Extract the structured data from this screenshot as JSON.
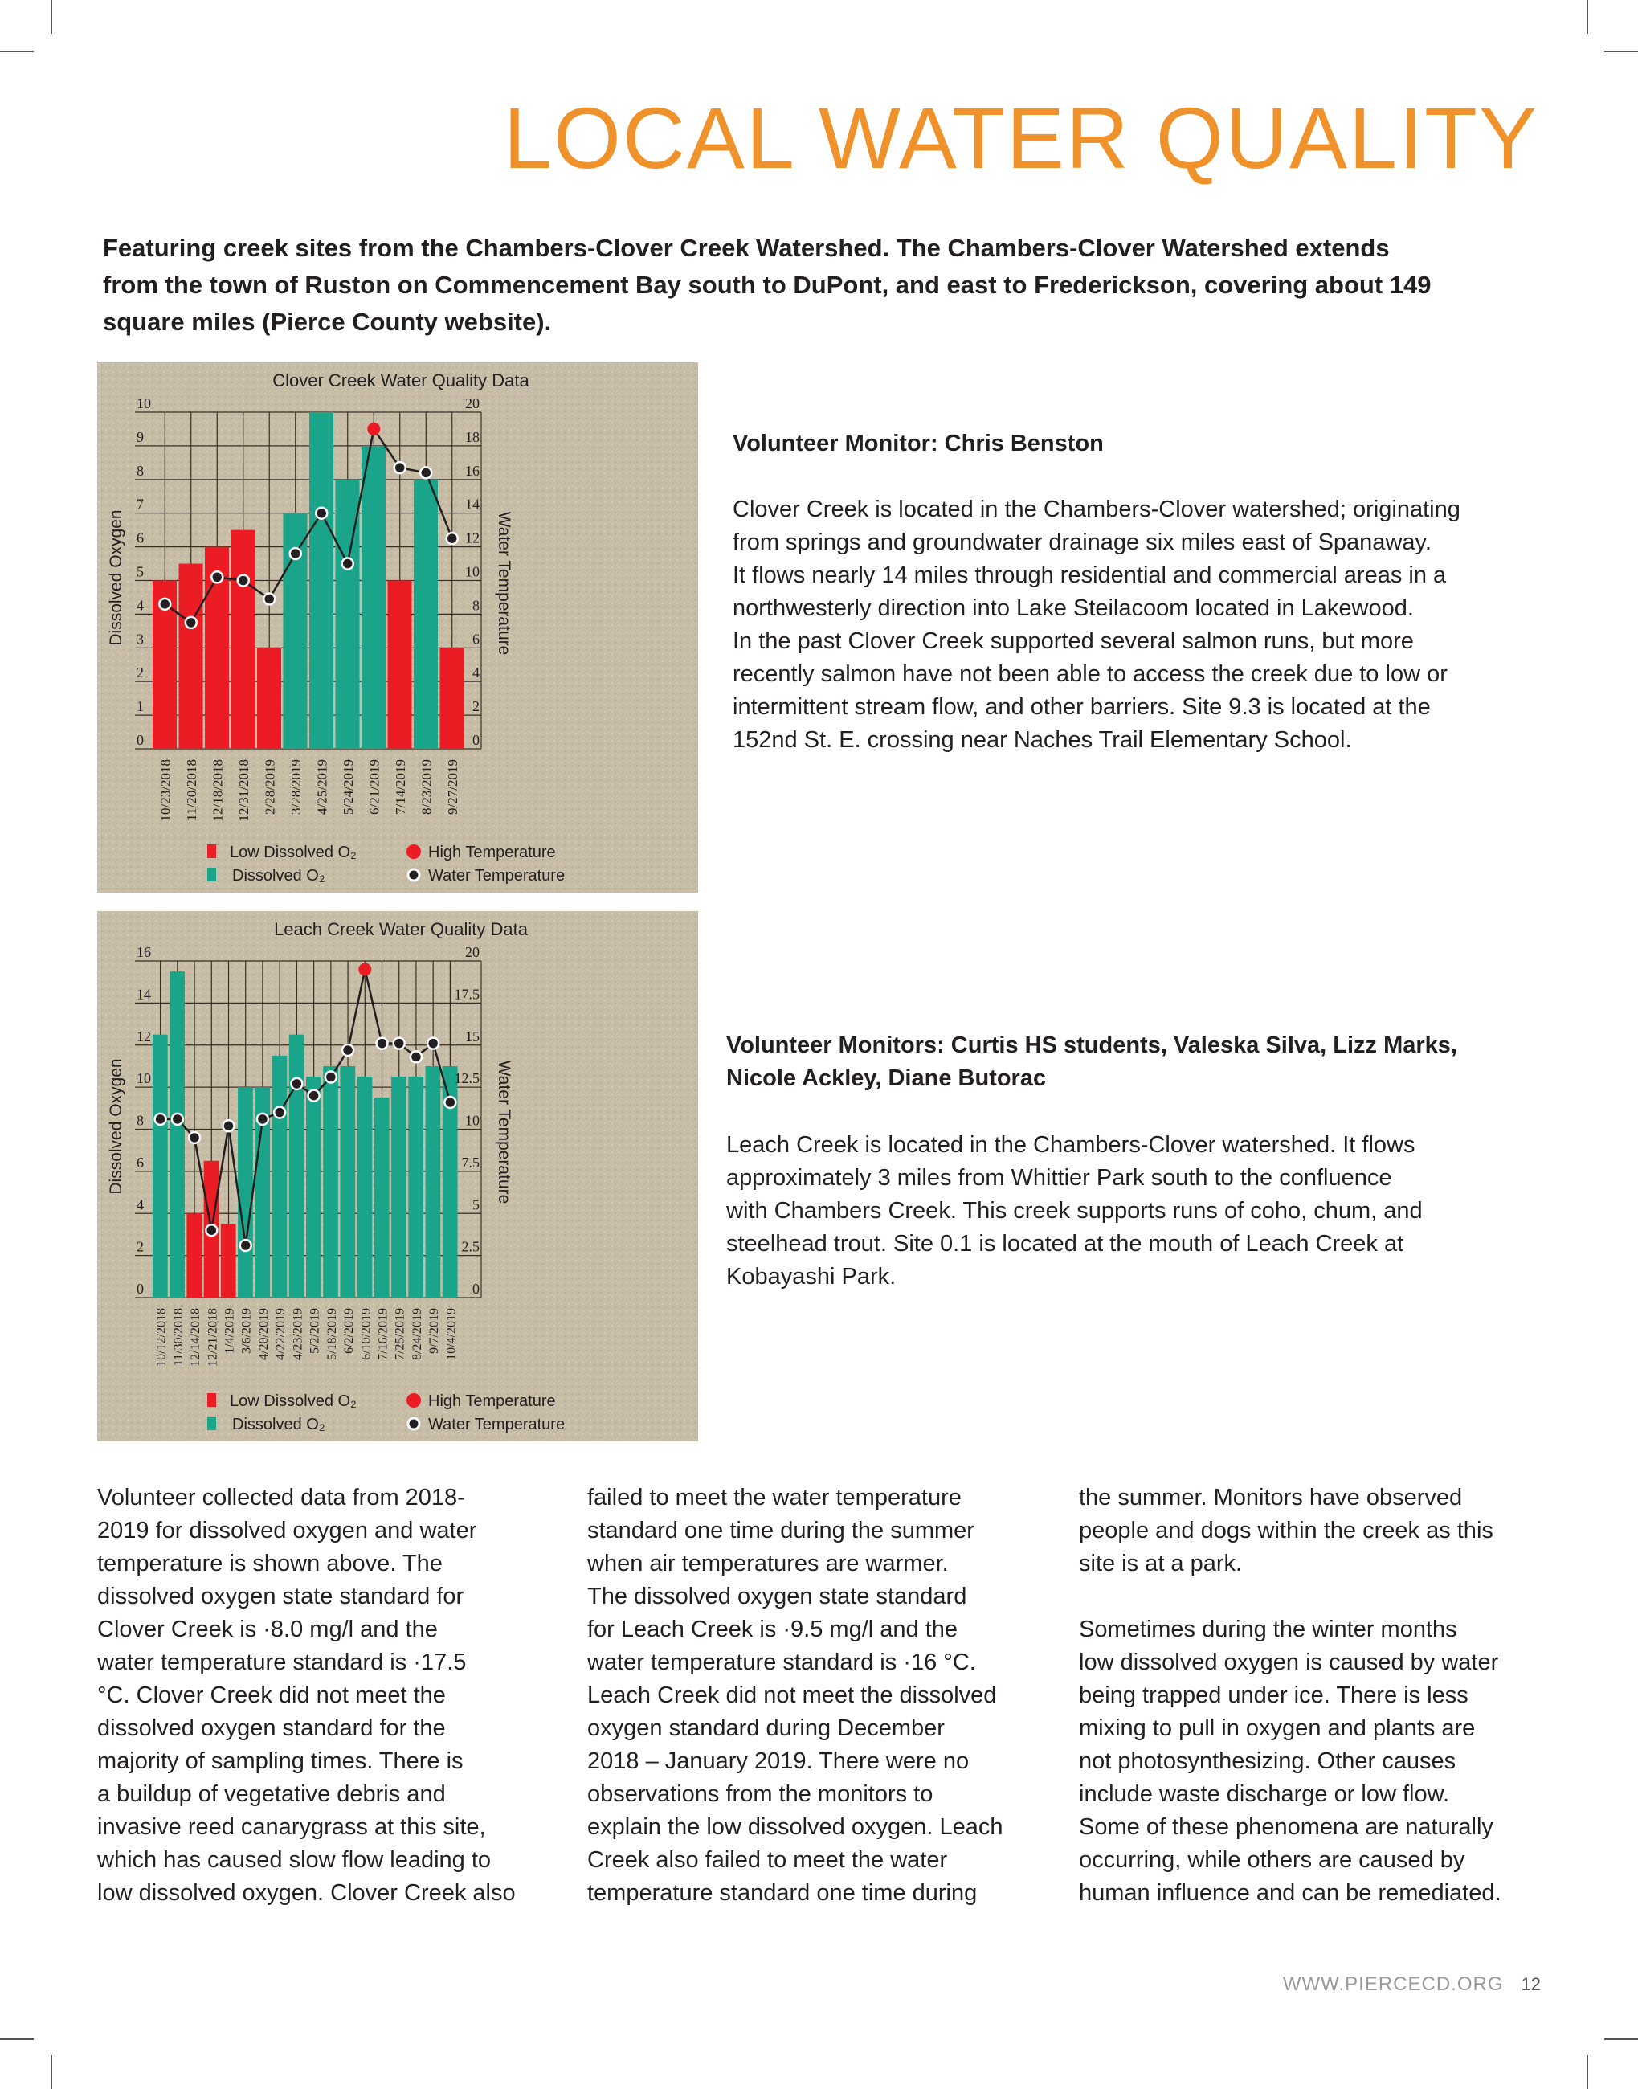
{
  "page": {
    "title": "LOCAL WATER QUALITY",
    "intro_lines": [
      "Featuring creek sites from the Chambers-Clover Creek Watershed. The Chambers-Clover Watershed extends",
      "from the town of Ruston on Commencement Bay south to DuPont, and east to Frederickson, covering about 149",
      "square miles (Pierce County website)."
    ],
    "accent_color": "#f0922b"
  },
  "clover_section": {
    "heading_lines": [
      "Volunteer Monitor: Chris Benston"
    ],
    "paragraph_lines": [
      "Clover Creek is located in the Chambers-Clover watershed; originating",
      "from springs and groundwater drainage six miles east of Spanaway.",
      "It flows nearly 14 miles through residential and commercial areas in a",
      "northwesterly direction into Lake Steilacoom located in Lakewood.",
      "In the past Clover Creek supported several salmon runs, but more",
      "recently salmon have not been able to access the creek due to low or",
      "intermittent stream flow, and other barriers. Site 9.3 is located at the",
      "152nd St. E. crossing near Naches Trail Elementary School."
    ]
  },
  "leach_section": {
    "heading_lines": [
      "Volunteer Monitors: Curtis HS students, Valeska Silva, Lizz Marks,",
      "Nicole Ackley, Diane Butorac"
    ],
    "paragraph_lines": [
      "Leach Creek is located in the Chambers-Clover watershed. It flows",
      "approximately 3 miles from Whittier Park south to the confluence",
      "with Chambers Creek. This creek supports runs of coho, chum, and",
      "steelhead trout. Site 0.1 is located at the mouth of Leach Creek at",
      "Kobayashi Park."
    ]
  },
  "columns": [
    [
      "Volunteer collected data from 2018-",
      "2019 for dissolved oxygen and water",
      "temperature is shown above. The",
      "dissolved oxygen state standard for",
      "Clover Creek is ·8.0 mg/l and the",
      "water temperature standard is ·17.5",
      "°C. Clover Creek did not meet the",
      "dissolved oxygen standard for the",
      "majority of sampling times. There is",
      "a buildup of vegetative debris and",
      "invasive reed canarygrass at this site,",
      "which has caused slow flow leading to",
      "low dissolved oxygen. Clover Creek also"
    ],
    [
      "failed to meet the water temperature",
      "standard one time during the summer",
      "when air temperatures are warmer.",
      "The dissolved oxygen state standard",
      "for Leach Creek is ·9.5 mg/l and the",
      "water temperature standard is ·16 °C.",
      "Leach Creek did not meet the dissolved",
      "oxygen standard during December",
      "2018 – January 2019. There were no",
      "observations from the monitors to",
      "explain the low dissolved oxygen. Leach",
      "Creek also failed to meet the water",
      "temperature standard one time during"
    ],
    [
      "the summer. Monitors have observed",
      "people and dogs within the creek as this",
      "site is at a park.",
      "",
      "Sometimes during the winter months",
      "low dissolved oxygen is caused by water",
      "being trapped under ice. There is less",
      "mixing to pull in oxygen and plants are",
      "not photosynthesizing. Other causes",
      "include waste discharge or low flow.",
      "Some of these phenomena are naturally",
      "occurring, while others are caused by",
      "human influence and can be remediated."
    ]
  ],
  "footer": {
    "website": "WWW.PIERCECD.ORG",
    "page_number": "12"
  },
  "chart_data": [
    {
      "type": "bar",
      "title": "Clover Creek Water Quality Data",
      "ylabel": "Dissolved Oxygen",
      "y2label": "Water Temperature",
      "ylim": [
        0,
        10
      ],
      "yticks": [
        0,
        1,
        2,
        3,
        4,
        5,
        6,
        7,
        8,
        9,
        10
      ],
      "y2lim": [
        0,
        20
      ],
      "y2ticks": [
        "0",
        "2",
        "4",
        "6",
        "8",
        "10",
        "12",
        "14",
        "16",
        "18",
        "20"
      ],
      "grid": true,
      "categories": [
        "10/23/2018",
        "11/20/2018",
        "12/18/2018",
        "12/31/2018",
        "2/28/2019",
        "3/28/2019",
        "4/25/2019",
        "5/24/2019",
        "6/21/2019",
        "7/14/2019",
        "8/23/2019",
        "9/27/2019"
      ],
      "series": [
        {
          "name": "Dissolved O₂",
          "type": "bar",
          "axis": "left",
          "values": [
            5,
            5.5,
            6,
            6.5,
            3,
            7,
            10,
            8,
            9,
            5,
            8,
            3
          ],
          "low": [
            true,
            true,
            true,
            true,
            true,
            false,
            false,
            false,
            false,
            true,
            false,
            true
          ]
        },
        {
          "name": "Water Temperature",
          "type": "line",
          "axis": "right",
          "values": [
            8.6,
            7.5,
            10.2,
            10.0,
            8.9,
            11.6,
            14.0,
            11.0,
            19.0,
            16.7,
            16.4,
            12.5
          ],
          "high": [
            false,
            false,
            false,
            false,
            false,
            false,
            false,
            false,
            true,
            false,
            false,
            false
          ]
        }
      ],
      "legend": {
        "placement": "bottom",
        "items": [
          "Low Dissolved O₂",
          "Dissolved O₂",
          "High Temperature",
          "Water Temperature"
        ]
      },
      "colors": {
        "low": "#ec1c24",
        "normal": "#1aa58a",
        "high_temp": "#ec1c24",
        "point": "#231f20",
        "background": "#c7bca6"
      }
    },
    {
      "type": "bar",
      "title": "Leach Creek Water Quality Data",
      "ylabel": "Dissolved Oxygen",
      "y2label": "Water Temperature",
      "ylim": [
        0,
        16
      ],
      "yticks": [
        0,
        2,
        4,
        6,
        8,
        10,
        12,
        14,
        16
      ],
      "y2lim": [
        0,
        20
      ],
      "y2ticks": [
        "0",
        "2.5",
        "5",
        "7.5",
        "10",
        "12.5",
        "15",
        "17.5",
        "20"
      ],
      "grid": true,
      "categories": [
        "10/12/2018",
        "11/30/2018",
        "12/14/2018",
        "12/21/2018",
        "1/4/2019",
        "3/6/2019",
        "4/20/2019",
        "4/22/2019",
        "4/23/2019",
        "5/2/2019",
        "5/18/2019",
        "6/2/2019",
        "6/10/2019",
        "7/16/2019",
        "7/25/2019",
        "8/24/2019",
        "9/7/2019",
        "10/4/2019"
      ],
      "series": [
        {
          "name": "Dissolved O₂",
          "type": "bar",
          "axis": "left",
          "values": [
            12.5,
            15.5,
            4,
            6.5,
            3.5,
            10,
            10,
            11.5,
            12.5,
            10.5,
            11,
            11,
            10.5,
            9.5,
            10.5,
            10.5,
            11,
            11
          ],
          "low": [
            false,
            false,
            true,
            true,
            true,
            false,
            false,
            false,
            false,
            false,
            false,
            false,
            false,
            false,
            false,
            false,
            false,
            false
          ]
        },
        {
          "name": "Water Temperature",
          "type": "line",
          "axis": "right",
          "values": [
            10.6,
            10.6,
            9.5,
            4.0,
            10.2,
            3.1,
            10.6,
            11.0,
            12.7,
            12.0,
            13.1,
            14.7,
            19.5,
            15.1,
            15.1,
            14.3,
            15.1,
            11.6
          ],
          "high": [
            false,
            false,
            false,
            false,
            false,
            false,
            false,
            false,
            false,
            false,
            false,
            false,
            true,
            false,
            false,
            false,
            false,
            false
          ]
        }
      ],
      "legend": {
        "placement": "bottom",
        "items": [
          "Low Dissolved O₂",
          "Dissolved O₂",
          "High Temperature",
          "Water Temperature"
        ]
      },
      "colors": {
        "low": "#ec1c24",
        "normal": "#1aa58a",
        "high_temp": "#ec1c24",
        "point": "#231f20",
        "background": "#c7bca6"
      }
    }
  ]
}
